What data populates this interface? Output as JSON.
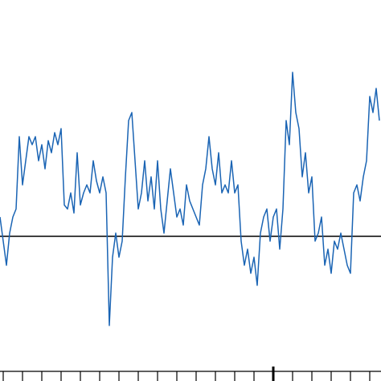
{
  "chart_data": {
    "type": "line",
    "color": "#1a64b4",
    "xlim": [
      0,
      118.5
    ],
    "ylim": [
      -1.8,
      2.94
    ],
    "xticks": [
      1,
      7,
      13,
      19,
      25,
      31,
      37,
      43,
      49,
      55,
      61,
      67,
      73,
      79,
      85,
      91,
      97,
      103,
      109,
      115
    ],
    "major_xtick": 85,
    "hline": 0,
    "values": [
      0.24,
      -0.06,
      -0.36,
      0.04,
      0.24,
      0.34,
      1.24,
      0.64,
      0.94,
      1.24,
      1.14,
      1.24,
      0.94,
      1.14,
      0.84,
      1.19,
      1.04,
      1.29,
      1.14,
      1.34,
      0.39,
      0.34,
      0.54,
      0.29,
      1.04,
      0.39,
      0.54,
      0.64,
      0.54,
      0.94,
      0.69,
      0.54,
      0.74,
      0.54,
      -1.11,
      -0.26,
      0.04,
      -0.26,
      -0.06,
      0.74,
      1.44,
      1.54,
      0.94,
      0.34,
      0.54,
      0.94,
      0.44,
      0.74,
      0.34,
      0.94,
      0.34,
      0.04,
      0.44,
      0.84,
      0.54,
      0.24,
      0.34,
      0.14,
      0.64,
      0.44,
      0.34,
      0.24,
      0.14,
      0.64,
      0.84,
      1.24,
      0.84,
      0.64,
      1.04,
      0.54,
      0.64,
      0.54,
      0.94,
      0.54,
      0.64,
      -0.06,
      -0.36,
      -0.16,
      -0.46,
      -0.26,
      -0.61,
      0.04,
      0.24,
      0.34,
      -0.06,
      0.24,
      0.34,
      -0.16,
      0.34,
      1.44,
      1.14,
      2.04,
      1.54,
      1.34,
      0.74,
      1.04,
      0.54,
      0.74,
      -0.06,
      0.04,
      0.24,
      -0.36,
      -0.16,
      -0.46,
      -0.06,
      -0.16,
      0.04,
      -0.16,
      -0.36,
      -0.46,
      0.54,
      0.64,
      0.44,
      0.74,
      0.94,
      1.74,
      1.54,
      1.84,
      1.44
    ]
  }
}
